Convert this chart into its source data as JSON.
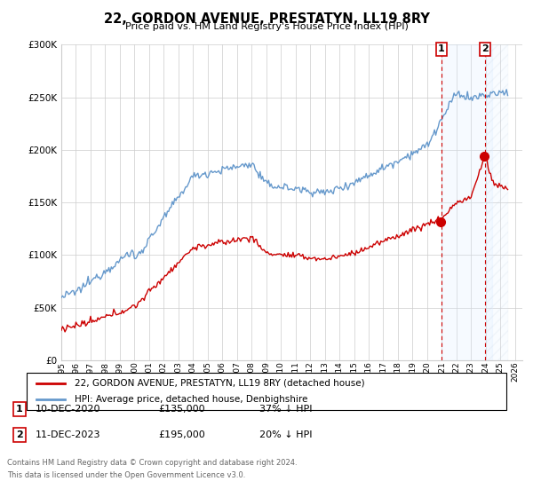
{
  "title": "22, GORDON AVENUE, PRESTATYN, LL19 8RY",
  "subtitle": "Price paid vs. HM Land Registry's House Price Index (HPI)",
  "legend_line1": "22, GORDON AVENUE, PRESTATYN, LL19 8RY (detached house)",
  "legend_line2": "HPI: Average price, detached house, Denbighshire",
  "marker1_date": "10-DEC-2020",
  "marker1_price": "£135,000",
  "marker1_hpi": "37% ↓ HPI",
  "marker2_date": "11-DEC-2023",
  "marker2_price": "£195,000",
  "marker2_hpi": "20% ↓ HPI",
  "footer1": "Contains HM Land Registry data © Crown copyright and database right 2024.",
  "footer2": "This data is licensed under the Open Government Licence v3.0.",
  "ylim": [
    0,
    300000
  ],
  "yticks": [
    0,
    50000,
    100000,
    150000,
    200000,
    250000,
    300000
  ],
  "hpi_color": "#6699cc",
  "price_color": "#cc0000",
  "vline_color": "#cc0000",
  "shade_color": "#ddeeff",
  "background_color": "#ffffff",
  "grid_color": "#cccccc",
  "marker1_x": 2020.958,
  "marker2_x": 2023.958,
  "xlim_left": 1995,
  "xlim_right": 2026.5
}
